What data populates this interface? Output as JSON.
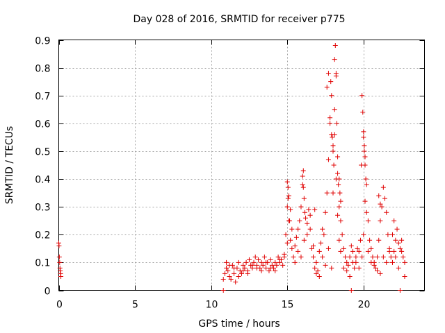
{
  "chart_data": {
    "type": "scatter",
    "title": "Day 028 of 2016, SRMTID for receiver p775",
    "xlabel": "GPS time / hours",
    "ylabel": "SRMTID / TECUs",
    "xlim": [
      0,
      24
    ],
    "ylim": [
      0,
      0.9
    ],
    "xticks": [
      0,
      5,
      10,
      15,
      20
    ],
    "xtick_labels": [
      "0",
      "5",
      "10",
      "15",
      "20"
    ],
    "yticks": [
      0,
      0.1,
      0.2,
      0.3,
      0.4,
      0.5,
      0.6,
      0.7,
      0.8,
      0.9
    ],
    "ytick_labels": [
      "0",
      "0.1",
      "0.2",
      "0.3",
      "0.4",
      "0.5",
      "0.6",
      "0.7",
      "0.8",
      "0.9"
    ],
    "grid": true,
    "marker": "+",
    "series": [
      {
        "name": "SRMTID",
        "color": "#e00000",
        "x": [
          0.0,
          0.02,
          0.04,
          0.06,
          0.08,
          0.1,
          0.12,
          0.14,
          10.8,
          10.9,
          11.0,
          11.1,
          11.2,
          11.3,
          11.4,
          11.5,
          11.6,
          11.7,
          11.8,
          11.9,
          12.0,
          12.1,
          12.2,
          12.3,
          12.4,
          12.5,
          12.6,
          12.7,
          12.8,
          12.9,
          13.0,
          13.1,
          13.2,
          13.3,
          13.4,
          13.5,
          13.6,
          13.7,
          13.8,
          13.9,
          14.0,
          14.1,
          14.2,
          14.3,
          14.4,
          14.5,
          14.6,
          14.7,
          14.8,
          14.9,
          15.0,
          15.05,
          15.1,
          15.15,
          15.2,
          15.3,
          15.4,
          15.5,
          15.6,
          15.7,
          15.8,
          15.9,
          16.0,
          16.05,
          16.1,
          16.15,
          16.2,
          16.3,
          16.4,
          16.5,
          16.6,
          16.7,
          16.8,
          16.9,
          17.0,
          17.1,
          17.2,
          17.3,
          17.4,
          17.5,
          17.6,
          17.7,
          17.8,
          17.85,
          17.9,
          17.95,
          18.0,
          18.05,
          18.1,
          18.15,
          18.2,
          18.25,
          18.3,
          18.35,
          18.4,
          18.5,
          18.6,
          18.7,
          18.8,
          18.9,
          19.0,
          19.1,
          19.2,
          19.3,
          19.4,
          19.5,
          19.6,
          19.7,
          19.8,
          19.85,
          19.9,
          19.95,
          20.0,
          20.05,
          20.1,
          20.2,
          20.3,
          20.4,
          20.5,
          20.6,
          20.7,
          20.8,
          20.9,
          21.0,
          21.1,
          21.2,
          21.3,
          21.4,
          21.5,
          21.6,
          21.7,
          21.8,
          21.9,
          22.0,
          22.1,
          22.2,
          22.3,
          22.4,
          22.5,
          22.6,
          22.7,
          10.8,
          19.2,
          22.4,
          11.0,
          11.2,
          11.5,
          11.8,
          12.1,
          12.4,
          12.7,
          13.0,
          13.3,
          13.6,
          13.9,
          14.2,
          14.5,
          14.8,
          15.0,
          15.1,
          15.2,
          15.3,
          15.5,
          15.7,
          15.9,
          16.1,
          16.3,
          16.5,
          16.7,
          16.9,
          17.1,
          17.3,
          17.5,
          17.7,
          17.9,
          18.0,
          18.1,
          18.2,
          18.3,
          18.4,
          18.5,
          18.7,
          18.9,
          19.1,
          19.3,
          19.5,
          19.7,
          19.9,
          20.0,
          20.1,
          20.2,
          20.3,
          20.5,
          20.7,
          20.9,
          21.1,
          21.3,
          21.5,
          21.7,
          21.9,
          22.1,
          22.3,
          22.5,
          22.7,
          17.6,
          17.7,
          17.8,
          17.9,
          18.0,
          18.1,
          18.2,
          18.3,
          18.4,
          18.45,
          18.5,
          20.0,
          20.05,
          20.1,
          20.15,
          16.0,
          16.05,
          15.0,
          15.05,
          21.0,
          21.1,
          16.8,
          22.0
        ],
        "y": [
          0.17,
          0.16,
          0.12,
          0.1,
          0.08,
          0.07,
          0.06,
          0.05,
          0.04,
          0.06,
          0.08,
          0.07,
          0.05,
          0.04,
          0.09,
          0.06,
          0.03,
          0.08,
          0.05,
          0.07,
          0.06,
          0.09,
          0.08,
          0.1,
          0.07,
          0.11,
          0.09,
          0.08,
          0.1,
          0.12,
          0.09,
          0.11,
          0.08,
          0.1,
          0.09,
          0.12,
          0.08,
          0.1,
          0.07,
          0.11,
          0.09,
          0.08,
          0.1,
          0.09,
          0.12,
          0.1,
          0.11,
          0.09,
          0.13,
          0.2,
          0.3,
          0.37,
          0.34,
          0.25,
          0.18,
          0.15,
          0.12,
          0.16,
          0.19,
          0.22,
          0.25,
          0.3,
          0.38,
          0.43,
          0.33,
          0.28,
          0.26,
          0.24,
          0.29,
          0.22,
          0.15,
          0.12,
          0.08,
          0.1,
          0.07,
          0.14,
          0.17,
          0.22,
          0.2,
          0.28,
          0.35,
          0.47,
          0.62,
          0.75,
          0.7,
          0.55,
          0.5,
          0.45,
          0.65,
          0.88,
          0.78,
          0.6,
          0.42,
          0.38,
          0.3,
          0.25,
          0.2,
          0.15,
          0.12,
          0.1,
          0.09,
          0.12,
          0.16,
          0.1,
          0.08,
          0.12,
          0.15,
          0.14,
          0.18,
          0.45,
          0.7,
          0.64,
          0.55,
          0.5,
          0.45,
          0.38,
          0.25,
          0.18,
          0.15,
          0.12,
          0.1,
          0.08,
          0.12,
          0.18,
          0.25,
          0.3,
          0.37,
          0.33,
          0.28,
          0.2,
          0.15,
          0.12,
          0.1,
          0.14,
          0.18,
          0.22,
          0.17,
          0.15,
          0.18,
          0.12,
          0.1,
          0.0,
          0.0,
          0.0,
          0.1,
          0.09,
          0.08,
          0.1,
          0.07,
          0.06,
          0.09,
          0.08,
          0.07,
          0.1,
          0.08,
          0.07,
          0.11,
          0.12,
          0.17,
          0.25,
          0.29,
          0.22,
          0.1,
          0.14,
          0.12,
          0.18,
          0.2,
          0.27,
          0.16,
          0.06,
          0.05,
          0.12,
          0.09,
          0.15,
          0.08,
          0.35,
          0.56,
          0.4,
          0.27,
          0.18,
          0.14,
          0.08,
          0.07,
          0.05,
          0.14,
          0.1,
          0.08,
          0.12,
          0.2,
          0.32,
          0.28,
          0.14,
          0.1,
          0.09,
          0.07,
          0.06,
          0.12,
          0.1,
          0.14,
          0.2,
          0.12,
          0.08,
          0.14,
          0.05,
          0.73,
          0.78,
          0.6,
          0.56,
          0.52,
          0.83,
          0.77,
          0.48,
          0.4,
          0.35,
          0.32,
          0.57,
          0.52,
          0.48,
          0.4,
          0.41,
          0.37,
          0.39,
          0.33,
          0.34,
          0.31,
          0.29,
          0.25
        ]
      }
    ]
  }
}
